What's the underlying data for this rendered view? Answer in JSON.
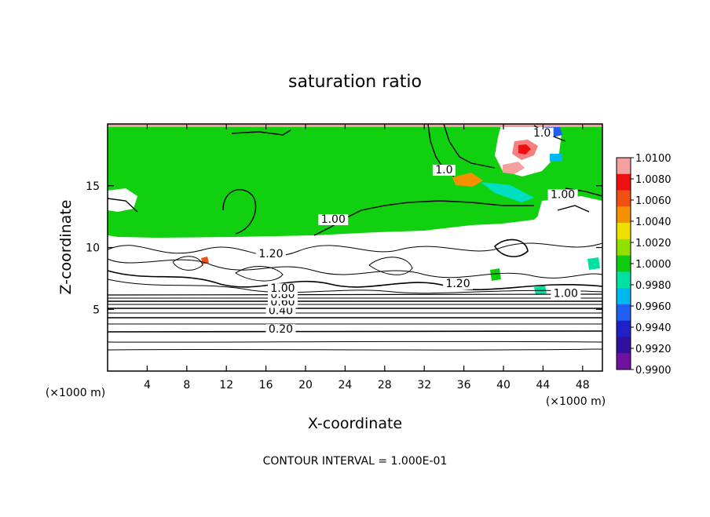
{
  "chart_data": {
    "type": "heatmap",
    "title": "saturation ratio",
    "xlabel": "X-coordinate",
    "ylabel": "Z-coordinate",
    "x_unit": "(×1000 m)",
    "y_unit": "(×1000 m)",
    "xlim": [
      0,
      50
    ],
    "ylim": [
      0,
      20
    ],
    "x_ticks": [
      4,
      8,
      12,
      16,
      20,
      24,
      28,
      32,
      36,
      40,
      44,
      48
    ],
    "y_ticks": [
      5,
      10,
      15
    ],
    "footer": "CONTOUR INTERVAL = 1.000E-01",
    "colorbar": {
      "labels": [
        "1.0100",
        "1.0080",
        "1.0060",
        "1.0040",
        "1.0020",
        "1.0000",
        "0.9980",
        "0.9960",
        "0.9940",
        "0.9920",
        "0.9900"
      ],
      "colors": [
        "#f4a0a0",
        "#ee1010",
        "#f05010",
        "#f59000",
        "#f0e000",
        "#90e000",
        "#10cc10",
        "#00e0a0",
        "#00b8f0",
        "#2060f0",
        "#2020c8",
        "#3010a0",
        "#7010a0"
      ]
    },
    "contour_labels": [
      {
        "text": "0.20",
        "x": 17.5,
        "z": 3.1
      },
      {
        "text": "0.40",
        "x": 17.5,
        "z": 4.6
      },
      {
        "text": "0.60",
        "x": 17.7,
        "z": 5.3
      },
      {
        "text": "0.80",
        "x": 17.7,
        "z": 5.9
      },
      {
        "text": "1.00",
        "x": 17.7,
        "z": 6.4
      },
      {
        "text": "1.20",
        "x": 16.5,
        "z": 9.2
      },
      {
        "text": "1.20",
        "x": 35.4,
        "z": 6.8
      },
      {
        "text": "1.00",
        "x": 22.8,
        "z": 12.0
      },
      {
        "text": "1.00",
        "x": 46.0,
        "z": 14.0
      },
      {
        "text": "1.00",
        "x": 46.3,
        "z": 6.0
      },
      {
        "text": "1.0",
        "x": 34.0,
        "z": 16.0
      },
      {
        "text": "1.0",
        "x": 43.9,
        "z": 19.0
      }
    ]
  }
}
